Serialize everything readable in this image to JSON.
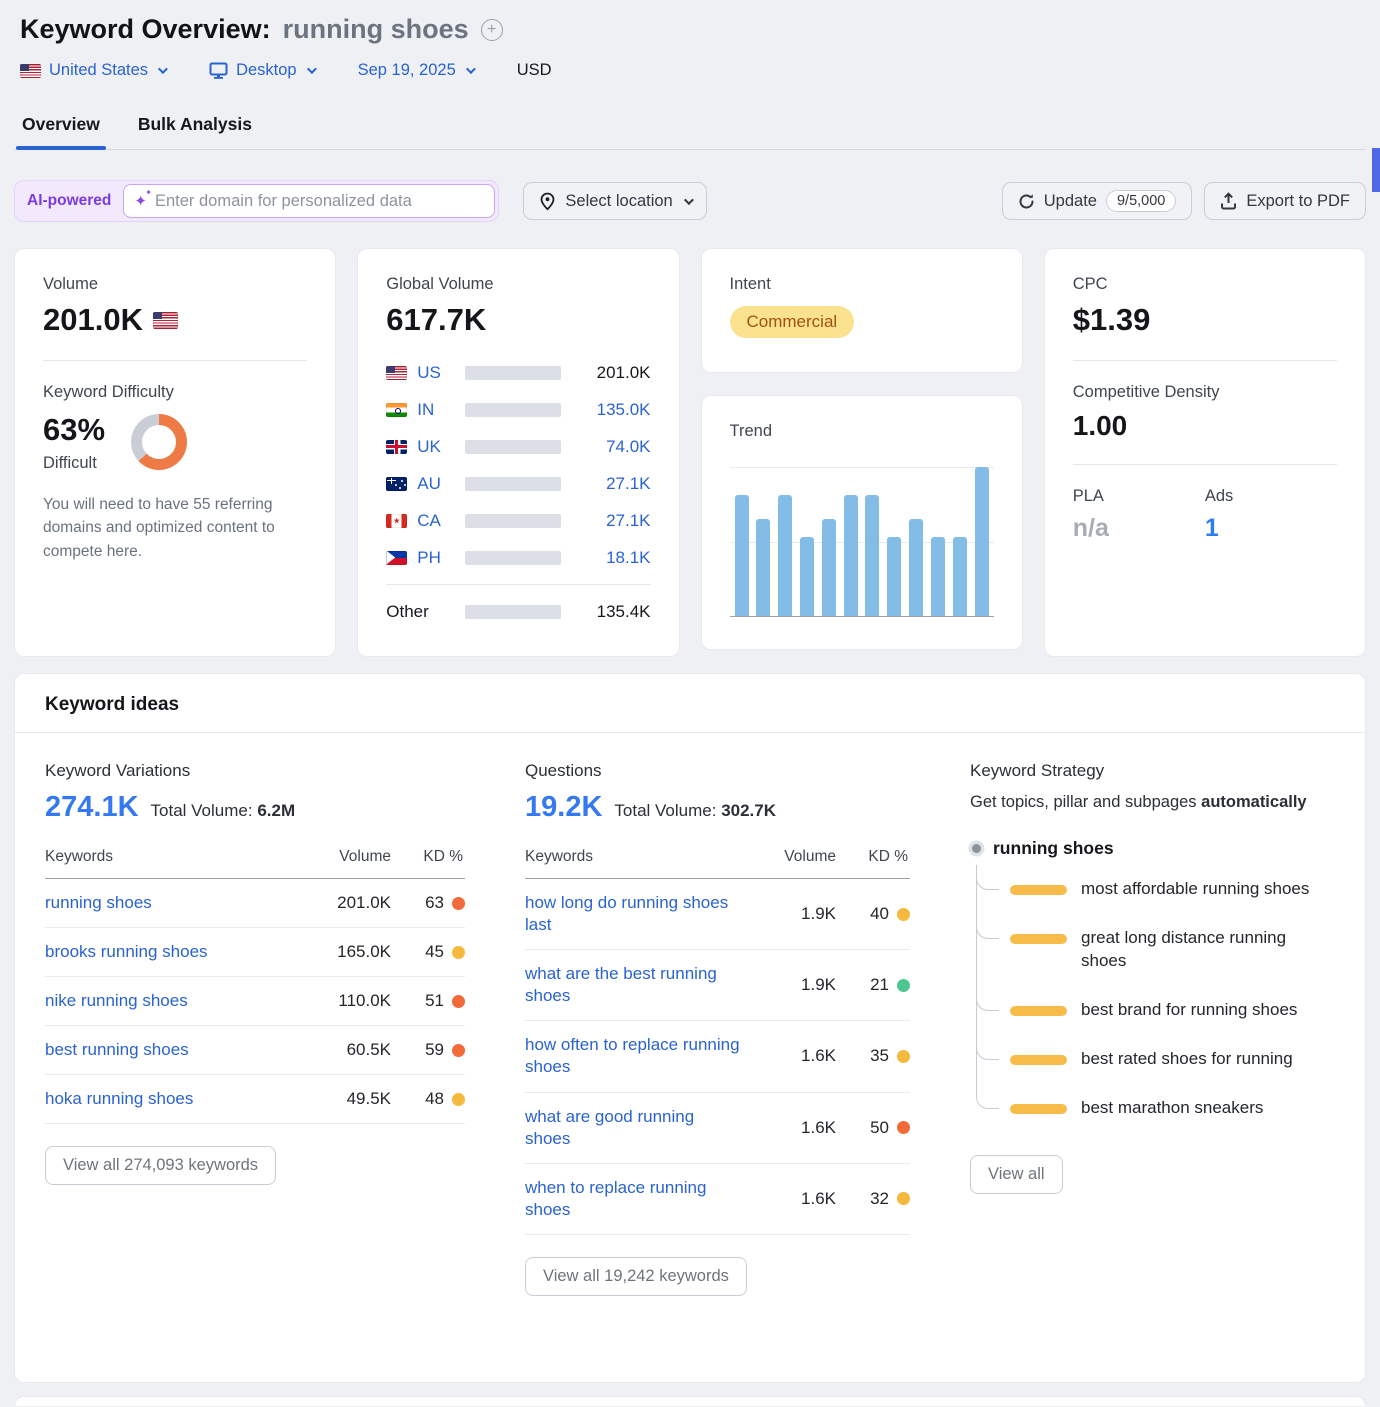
{
  "colors": {
    "accent_blue": "#2a63cf",
    "bright_blue": "#3579f0",
    "bar_dark": "#2f5fd0",
    "bar_light": "#47abf5",
    "trend_bar": "#84bce8",
    "kd_orange": "#f26a3a",
    "kd_yellow": "#f5b93d",
    "kd_green": "#4ec68f",
    "donut_orange": "#ee7a45",
    "intent_bg": "#fbe28e",
    "intent_text": "#a3520e",
    "strategy_pill": "#f7bb4a"
  },
  "header": {
    "title": "Keyword Overview:",
    "keyword": "running shoes",
    "filters": {
      "country": "United States",
      "device": "Desktop",
      "date": "Sep 19, 2025",
      "currency": "USD"
    }
  },
  "tabs": [
    {
      "label": "Overview",
      "active": true
    },
    {
      "label": "Bulk Analysis",
      "active": false
    }
  ],
  "toolbar": {
    "ai_badge": "AI-powered",
    "domain_placeholder": "Enter domain for personalized data",
    "location_label": "Select location",
    "update_label": "Update",
    "update_count": "9/5,000",
    "export_label": "Export to PDF"
  },
  "cards": {
    "volume": {
      "label": "Volume",
      "value": "201.0K",
      "kd_label": "Keyword Difficulty",
      "kd_value": "63%",
      "kd_percent": 63,
      "kd_level": "Difficult",
      "kd_note": "You will need to have 55 referring domains and optimized content to compete here."
    },
    "global": {
      "label": "Global Volume",
      "value": "617.7K",
      "rows": [
        {
          "code": "US",
          "flag": "us",
          "value": "201.0K",
          "pct": 32.5,
          "dark": true,
          "plain_value": true
        },
        {
          "code": "IN",
          "flag": "in",
          "value": "135.0K",
          "pct": 21.9,
          "dark": false,
          "plain_value": false
        },
        {
          "code": "UK",
          "flag": "uk",
          "value": "74.0K",
          "pct": 12.0,
          "dark": false,
          "plain_value": false
        },
        {
          "code": "AU",
          "flag": "au",
          "value": "27.1K",
          "pct": 4.4,
          "dark": false,
          "plain_value": false
        },
        {
          "code": "CA",
          "flag": "ca",
          "value": "27.1K",
          "pct": 4.4,
          "dark": false,
          "plain_value": false
        },
        {
          "code": "PH",
          "flag": "ph",
          "value": "18.1K",
          "pct": 2.9,
          "dark": false,
          "plain_value": false
        }
      ],
      "other": {
        "label": "Other",
        "value": "135.4K",
        "pct": 21.9
      }
    },
    "intent": {
      "label": "Intent",
      "value": "Commercial"
    },
    "trend": {
      "label": "Trend"
    },
    "cpc": {
      "label": "CPC",
      "value": "$1.39",
      "cd_label": "Competitive Density",
      "cd_value": "1.00",
      "pla_label": "PLA",
      "pla_value": "n/a",
      "ads_label": "Ads",
      "ads_value": "1"
    }
  },
  "chart_data": {
    "type": "bar",
    "title": "Trend",
    "categories": [
      "1",
      "2",
      "3",
      "4",
      "5",
      "6",
      "7",
      "8",
      "9",
      "10",
      "11",
      "12"
    ],
    "values": [
      0.81,
      0.65,
      0.81,
      0.53,
      0.65,
      0.81,
      0.81,
      0.53,
      0.65,
      0.53,
      0.53,
      1.0
    ],
    "xlabel": "",
    "ylabel": "",
    "ylim": [
      0,
      1
    ],
    "note": "12 monthly bars, unlabeled axes; values normalized to tallest bar which touches top gridline; mid gridline at 0.5"
  },
  "ideas": {
    "title": "Keyword ideas",
    "variations": {
      "title": "Keyword Variations",
      "count": "274.1K",
      "total_label": "Total Volume:",
      "total": "6.2M",
      "headers": {
        "kw": "Keywords",
        "vol": "Volume",
        "kd": "KD %"
      },
      "rows": [
        {
          "keyword": "running shoes",
          "volume": "201.0K",
          "kd": "63",
          "kd_color": "kd_orange"
        },
        {
          "keyword": "brooks running shoes",
          "volume": "165.0K",
          "kd": "45",
          "kd_color": "kd_yellow"
        },
        {
          "keyword": "nike running shoes",
          "volume": "110.0K",
          "kd": "51",
          "kd_color": "kd_orange"
        },
        {
          "keyword": "best running shoes",
          "volume": "60.5K",
          "kd": "59",
          "kd_color": "kd_orange"
        },
        {
          "keyword": "hoka running shoes",
          "volume": "49.5K",
          "kd": "48",
          "kd_color": "kd_yellow"
        }
      ],
      "view_all": "View all 274,093 keywords"
    },
    "questions": {
      "title": "Questions",
      "count": "19.2K",
      "total_label": "Total Volume:",
      "total": "302.7K",
      "headers": {
        "kw": "Keywords",
        "vol": "Volume",
        "kd": "KD %"
      },
      "rows": [
        {
          "keyword": "how long do running shoes last",
          "volume": "1.9K",
          "kd": "40",
          "kd_color": "kd_yellow"
        },
        {
          "keyword": "what are the best running shoes",
          "volume": "1.9K",
          "kd": "21",
          "kd_color": "kd_green"
        },
        {
          "keyword": "how often to replace running shoes",
          "volume": "1.6K",
          "kd": "35",
          "kd_color": "kd_yellow"
        },
        {
          "keyword": "what are good running shoes",
          "volume": "1.6K",
          "kd": "50",
          "kd_color": "kd_orange"
        },
        {
          "keyword": "when to replace running shoes",
          "volume": "1.6K",
          "kd": "32",
          "kd_color": "kd_yellow"
        }
      ],
      "view_all": "View all 19,242 keywords"
    },
    "strategy": {
      "title": "Keyword Strategy",
      "subtitle_prefix": "Get topics, pillar and subpages ",
      "subtitle_bold": "automatically",
      "root": "running shoes",
      "children": [
        "most affordable running shoes",
        "great long distance running shoes",
        "best brand for running shoes",
        "best rated shoes for running",
        "best marathon sneakers"
      ],
      "view_all": "View all"
    }
  }
}
